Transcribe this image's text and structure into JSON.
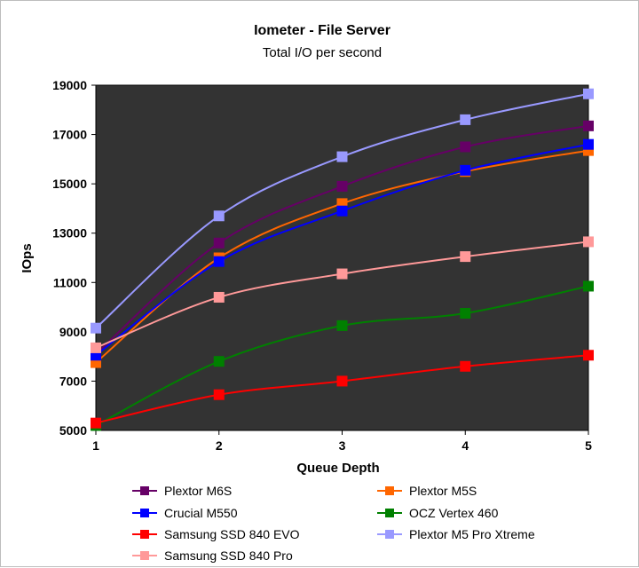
{
  "chart_data": {
    "type": "line",
    "title": "Iometer - File Server",
    "subtitle": "Total I/O per second",
    "xlabel": "Queue Depth",
    "ylabel": "IOps",
    "x": [
      1,
      2,
      3,
      4,
      5
    ],
    "xlim": [
      1,
      5
    ],
    "ylim": [
      5000,
      19000
    ],
    "yticks": [
      5000,
      7000,
      9000,
      11000,
      13000,
      15000,
      17000,
      19000
    ],
    "ytick_labels": [
      "5000",
      "7000",
      "9000",
      "11000",
      "13000",
      "15000",
      "17000",
      "19000"
    ],
    "xtick_labels": [
      "1",
      "2",
      "3",
      "4",
      "5"
    ],
    "plot_background": "#333333",
    "grid": false,
    "legend_position": "bottom",
    "series": [
      {
        "name": "Plextor M6S",
        "color": "#660066",
        "values": [
          8100,
          12600,
          14900,
          16500,
          17350
        ]
      },
      {
        "name": "Plextor M5S",
        "color": "#ff6600",
        "values": [
          7750,
          12000,
          14200,
          15500,
          16350
        ]
      },
      {
        "name": "Crucial M550",
        "color": "#0000ff",
        "values": [
          8050,
          11850,
          13900,
          15550,
          16600
        ]
      },
      {
        "name": "OCZ Vertex 460",
        "color": "#008000",
        "values": [
          5200,
          7800,
          9250,
          9750,
          10850
        ]
      },
      {
        "name": "Samsung SSD 840 EVO",
        "color": "#ff0000",
        "values": [
          5300,
          6450,
          7000,
          7600,
          8050
        ]
      },
      {
        "name": "Plextor M5 Pro Xtreme",
        "color": "#9999ff",
        "values": [
          9150,
          13700,
          16100,
          17600,
          18650
        ]
      },
      {
        "name": "Samsung SSD 840 Pro",
        "color": "#ff9999",
        "values": [
          8350,
          10400,
          11350,
          12050,
          12650
        ]
      }
    ]
  }
}
